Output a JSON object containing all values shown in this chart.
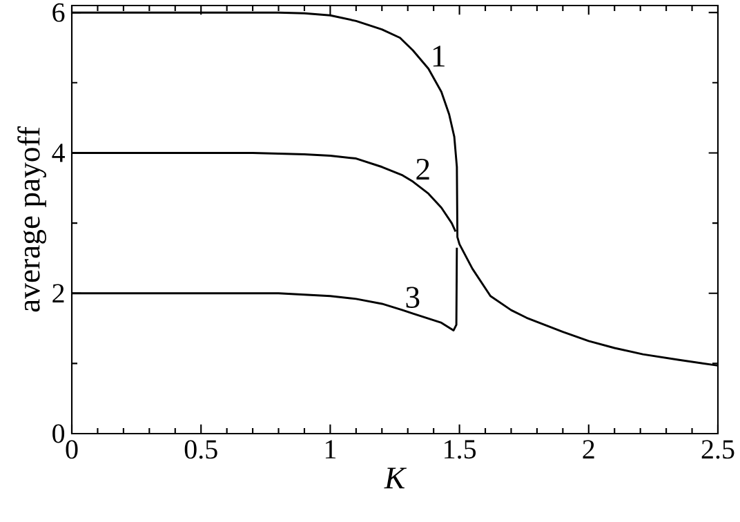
{
  "chart_data": {
    "type": "line",
    "xlabel": "K",
    "ylabel": "average payoff",
    "xlim": [
      0,
      2.5
    ],
    "ylim": [
      0,
      6.1
    ],
    "xticks": [
      0,
      0.5,
      1,
      1.5,
      2,
      2.5
    ],
    "yticks": [
      0,
      2,
      4,
      6
    ],
    "grid": false,
    "marker": "none",
    "line_style": "solid",
    "series": [
      {
        "color": "#000000",
        "x": [
          0,
          0.8,
          0.9,
          1.0,
          1.1,
          1.2,
          1.27,
          1.32,
          1.38,
          1.43,
          1.46,
          1.48,
          1.49,
          1.492,
          1.5,
          1.55,
          1.62,
          1.7,
          1.76,
          1.9,
          2.0,
          2.1,
          2.21,
          2.35,
          2.5
        ],
        "values": [
          6,
          6,
          5.99,
          5.96,
          5.88,
          5.76,
          5.64,
          5.46,
          5.2,
          4.87,
          4.55,
          4.23,
          3.8,
          2.8,
          2.7,
          2.35,
          1.96,
          1.76,
          1.65,
          1.45,
          1.32,
          1.22,
          1.13,
          1.05,
          0.97
        ]
      },
      {
        "color": "#000000",
        "x": [
          0,
          0.7,
          0.9,
          1.0,
          1.1,
          1.2,
          1.28,
          1.32,
          1.38,
          1.43,
          1.47,
          1.485
        ],
        "values": [
          4,
          4,
          3.98,
          3.96,
          3.92,
          3.8,
          3.68,
          3.59,
          3.42,
          3.22,
          3.0,
          2.88
        ]
      },
      {
        "color": "#000000",
        "x": [
          0,
          0.8,
          1.0,
          1.1,
          1.2,
          1.28,
          1.32,
          1.43,
          1.477,
          1.488,
          1.49
        ],
        "values": [
          2,
          2,
          1.96,
          1.92,
          1.85,
          1.76,
          1.71,
          1.58,
          1.47,
          1.55,
          2.65
        ]
      }
    ],
    "annotations": [
      "1",
      "2",
      "3"
    ]
  }
}
